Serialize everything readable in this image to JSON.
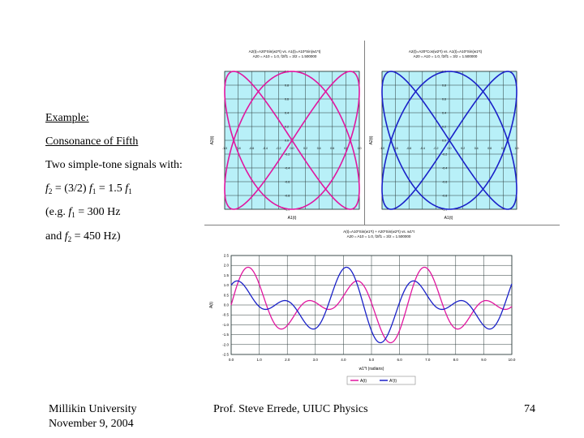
{
  "slide": {
    "example_label": "Example:",
    "subtitle": "Consonance of Fifth",
    "line1": "Two simple-tone signals with:",
    "eq": {
      "f2": "f",
      "f2_sub": "2",
      "eq_rest1": " = (3/2) ",
      "f1a": "f",
      "f1a_sub": "1",
      "eq_rest2": " = 1.5 ",
      "f1b": "f",
      "f1b_sub": "1"
    },
    "eg": {
      "prefix": "(e.g. ",
      "f": "f",
      "sub": "1",
      "val": " = 300 Hz"
    },
    "and": {
      "prefix": "and  ",
      "f": "f",
      "sub": "2",
      "val": " = 450 Hz)"
    }
  },
  "footer": {
    "university": "Millikin University",
    "date": "November 9, 2004",
    "author": "Prof. Steve Errede, UIUC Physics",
    "page": "74"
  },
  "colors": {
    "plot_bg": "#b8f0f8",
    "magenta": "#e0169f",
    "blue": "#1a21c8",
    "grid": "#2a3a3a"
  },
  "chart_data": [
    {
      "type": "line",
      "title": "A2(t)=A20*Sin(w2*t) vs. A1(t)=A10*Sin(w1*t)",
      "subtitle": "A20 = A10 = 1.0, f2/f1 = 3/2 = 1.500000",
      "xlabel": "A1(t)",
      "ylabel": "A2(t)",
      "xlim": [
        -1.0,
        1.0
      ],
      "ylim": [
        -1.0,
        1.0
      ],
      "x_ticks": [
        "-1.0",
        "-0.8",
        "-0.6",
        "-0.4",
        "-0.2",
        "0.0",
        "0.2",
        "0.4",
        "0.6",
        "0.8",
        "1.0"
      ],
      "y_ticks": [
        "1.0",
        "0.8",
        "0.6",
        "0.4",
        "0.2",
        "0.0",
        "-0.2",
        "-0.4",
        "-0.6",
        "-0.8",
        "-1.0"
      ],
      "series": [
        {
          "color": "#e0169f",
          "parametric": "x=sin(2t), y=sin(3t)"
        }
      ]
    },
    {
      "type": "line",
      "title": "A2(t)=A20*Cos(w2*t) vs. A1(t)=A10*Sin(w1*t)",
      "subtitle": "A20 = A10 = 1.0, f2/f1 = 3/2 = 1.500000",
      "xlabel": "A1(t)",
      "ylabel": "A2(t)",
      "xlim": [
        -1.0,
        1.0
      ],
      "ylim": [
        -1.0,
        1.0
      ],
      "x_ticks": [
        "-1.0",
        "-0.8",
        "-0.6",
        "-0.4",
        "-0.2",
        "0.0",
        "0.2",
        "0.4",
        "0.6",
        "0.8",
        "1.0"
      ],
      "y_ticks": [
        "1.0",
        "0.8",
        "0.6",
        "0.4",
        "0.2",
        "0.0",
        "-0.2",
        "-0.4",
        "-0.6",
        "-0.8",
        "-1.0"
      ],
      "series": [
        {
          "color": "#1a21c8",
          "parametric": "x=sin(2t), y=cos(3t)"
        }
      ]
    },
    {
      "type": "line",
      "title": "A(t)=A10*Sin(w1*t) + A20*Sin(w2*t) vs. w1*t",
      "subtitle": "A20 = A10 = 1.0, f2/f1 = 3/2 = 1.500000",
      "xlabel": "w1*t (radians)",
      "ylabel": "A(t)",
      "xlim": [
        0.0,
        10.0
      ],
      "ylim": [
        -2.5,
        2.5
      ],
      "x_ticks": [
        "0.0",
        "1.0",
        "2.0",
        "3.0",
        "4.0",
        "5.0",
        "6.0",
        "7.0",
        "8.0",
        "9.0",
        "10.0"
      ],
      "y_ticks": [
        "2.5",
        "2.0",
        "1.5",
        "1.0",
        "0.5",
        "0.0",
        "-0.5",
        "-1.0",
        "-1.5",
        "-2.0",
        "-2.5"
      ],
      "legend": "bottom-right",
      "series": [
        {
          "name": "A(t)",
          "color": "#e0169f",
          "formula": "sin(2x)+sin(3x)"
        },
        {
          "name": "A'(t)",
          "color": "#1a21c8",
          "formula": "sin(2x)+cos(3x)"
        }
      ]
    }
  ]
}
